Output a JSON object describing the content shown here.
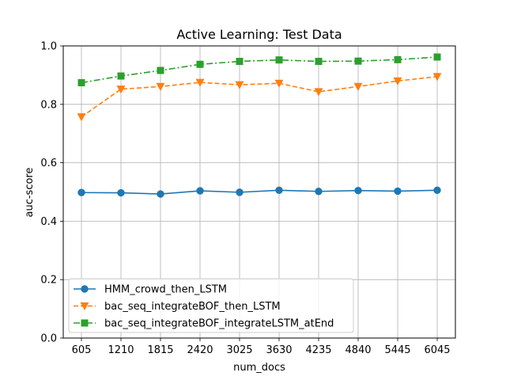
{
  "chart_data": {
    "type": "line",
    "title": "Active Learning: Test Data",
    "xlabel": "num_docs",
    "ylabel": "auc-score",
    "categories": [
      "605",
      "1210",
      "1815",
      "2420",
      "3025",
      "3630",
      "4235",
      "4840",
      "5445",
      "6045"
    ],
    "ylim": [
      0.0,
      1.0
    ],
    "yticks": [
      "0.0",
      "0.2",
      "0.4",
      "0.6",
      "0.8",
      "1.0"
    ],
    "grid": true,
    "legend_position": "lower-left",
    "series": [
      {
        "name": "HMM_crowd_then_LSTM",
        "color": "#1f77b4",
        "marker": "circle",
        "linestyle": "solid",
        "values": [
          0.498,
          0.497,
          0.493,
          0.504,
          0.499,
          0.506,
          0.502,
          0.505,
          0.503,
          0.506
        ]
      },
      {
        "name": "bac_seq_integrateBOF_then_LSTM",
        "color": "#ff7f0e",
        "marker": "triangle-down",
        "linestyle": "dashed",
        "values": [
          0.757,
          0.852,
          0.861,
          0.875,
          0.867,
          0.872,
          0.843,
          0.861,
          0.88,
          0.895
        ]
      },
      {
        "name": "bac_seq_integrateBOF_integrateLSTM_atEnd",
        "color": "#2ca02c",
        "marker": "square",
        "linestyle": "dashdot",
        "values": [
          0.874,
          0.897,
          0.916,
          0.937,
          0.947,
          0.952,
          0.947,
          0.948,
          0.953,
          0.962
        ]
      }
    ]
  }
}
